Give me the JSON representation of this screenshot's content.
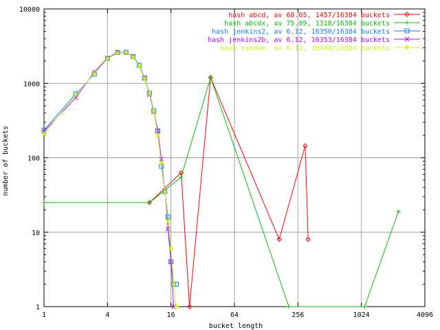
{
  "chart_data": {
    "type": "line",
    "title": "",
    "xlabel": "bucket length",
    "ylabel": "number of buckets",
    "x_scale": "log2",
    "y_scale": "log10",
    "xlim": [
      1,
      4096
    ],
    "ylim": [
      1,
      10000
    ],
    "grid": true,
    "legend_position": "top-right",
    "x_ticks": [
      "1",
      "4",
      "16",
      "64",
      "256",
      "1024",
      "4096"
    ],
    "y_ticks": [
      "1",
      "10",
      "100",
      "1000",
      "10000"
    ],
    "series": [
      {
        "name": "hash abcd, av 68.65, 1457/16384 buckets",
        "color": "#ff0000",
        "marker": "diamond",
        "points": [
          [
            10,
            25
          ],
          [
            20,
            63
          ],
          [
            24,
            1
          ],
          [
            38,
            1200
          ],
          [
            170,
            8
          ],
          [
            300,
            145
          ],
          [
            320,
            8
          ]
        ]
      },
      {
        "name": "hash abcdx, av 75.89, 1318/16384 buckets",
        "color": "#00c000",
        "marker": "plus",
        "points": [
          [
            1,
            25
          ],
          [
            10,
            25
          ],
          [
            20,
            55
          ],
          [
            38,
            1200
          ],
          [
            210,
            1
          ],
          [
            1100,
            1
          ],
          [
            2300,
            19
          ]
        ]
      },
      {
        "name": "hash jenkins2, av 6.12, 16350/16384 buckets",
        "color": "#0080ff",
        "marker": "square",
        "points": [
          [
            1,
            235
          ],
          [
            2,
            720
          ],
          [
            3,
            1330
          ],
          [
            4,
            2160
          ],
          [
            5,
            2590
          ],
          [
            6,
            2620
          ],
          [
            7,
            2290
          ],
          [
            8,
            1750
          ],
          [
            9,
            1180
          ],
          [
            10,
            740
          ],
          [
            11,
            430
          ],
          [
            12,
            230
          ],
          [
            13,
            77
          ],
          [
            14,
            35
          ],
          [
            15,
            16
          ],
          [
            16,
            4
          ],
          [
            17,
            2
          ],
          [
            18,
            2
          ]
        ]
      },
      {
        "name": "hash jenkins2b, av 6.12, 16353/16384 buckets",
        "color": "#c000ff",
        "marker": "cross",
        "points": [
          [
            1,
            225
          ],
          [
            2,
            640
          ],
          [
            3,
            1420
          ],
          [
            4,
            2190
          ],
          [
            5,
            2610
          ],
          [
            6,
            2560
          ],
          [
            7,
            2300
          ],
          [
            8,
            1700
          ],
          [
            9,
            1180
          ],
          [
            10,
            700
          ],
          [
            11,
            410
          ],
          [
            12,
            230
          ],
          [
            13,
            96
          ],
          [
            14,
            36
          ],
          [
            15,
            11
          ],
          [
            16,
            4
          ],
          [
            17,
            1
          ]
        ]
      },
      {
        "name": "hash random, av 6.12, 16348/16384 buckets",
        "color": "#c0ff00",
        "marker": "star",
        "points": [
          [
            1,
            210
          ],
          [
            2,
            700
          ],
          [
            3,
            1350
          ],
          [
            4,
            2150
          ],
          [
            5,
            2550
          ],
          [
            6,
            2600
          ],
          [
            7,
            2250
          ],
          [
            8,
            1700
          ],
          [
            9,
            1150
          ],
          [
            10,
            720
          ],
          [
            11,
            420
          ],
          [
            12,
            200
          ],
          [
            13,
            85
          ],
          [
            14,
            35
          ],
          [
            15,
            14
          ],
          [
            16,
            6
          ],
          [
            17,
            2
          ],
          [
            18,
            1
          ]
        ]
      }
    ]
  }
}
